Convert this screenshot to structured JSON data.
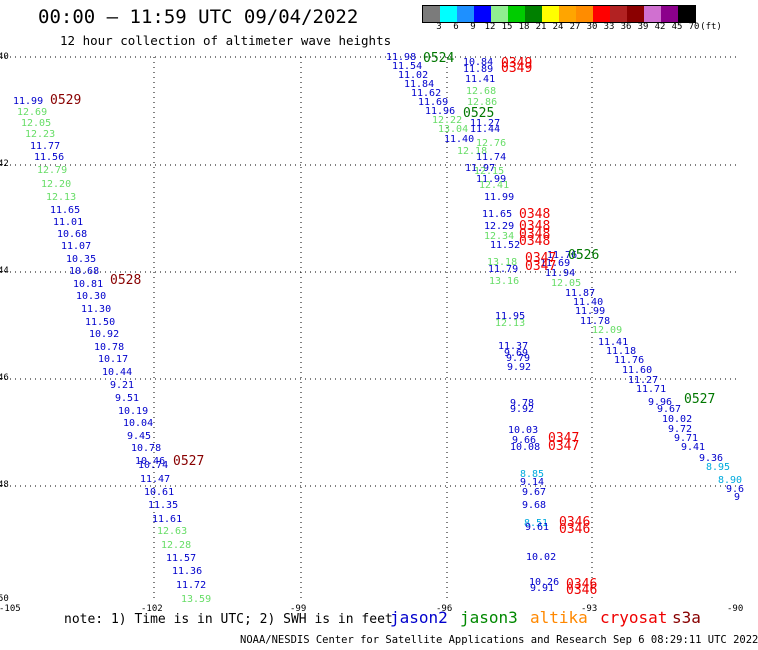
{
  "header": {
    "title": "00:00 – 11:59 UTC 09/04/2022",
    "subtitle": "12 hour collection of altimeter wave heights"
  },
  "colorbar": {
    "unit_label": "(ft)",
    "labels": [
      "3",
      "6",
      "9",
      "12",
      "15",
      "18",
      "21",
      "24",
      "27",
      "30",
      "33",
      "36",
      "39",
      "42",
      "45",
      "70"
    ],
    "colors": [
      "#7b7b7b",
      "#00ffff",
      "#1e90ff",
      "#0000ff",
      "#90ee90",
      "#00cc00",
      "#008000",
      "#ffff00",
      "#ffa500",
      "#ff8c00",
      "#ff0000",
      "#b22222",
      "#8b0000",
      "#d070d0",
      "#8b008b",
      "#000000"
    ]
  },
  "axes": {
    "lat_labels": [
      "40",
      "42",
      "44",
      "46",
      "48",
      "50"
    ],
    "lon_labels": [
      "-105",
      "-102",
      "-99",
      "-96",
      "-93",
      "-90"
    ]
  },
  "observations": [
    {
      "t": "11.98",
      "c": "#0000cc"
    },
    {
      "t": "11.54",
      "c": "#0000cc"
    },
    {
      "t": "11.02",
      "c": "#0000cc"
    },
    {
      "t": "11.84",
      "c": "#0000cc"
    },
    {
      "t": "11.62",
      "c": "#0000cc"
    },
    {
      "t": "11.69",
      "c": "#0000cc"
    },
    {
      "t": "11.96",
      "c": "#0000cc"
    },
    {
      "t": "12.22",
      "c": "#66dd66"
    },
    {
      "t": "13.04",
      "c": "#66dd66"
    },
    {
      "t": "11.40",
      "c": "#0000cc"
    },
    {
      "t": "12.18",
      "c": "#66dd66"
    },
    {
      "t": "11.97",
      "c": "#0000cc"
    },
    {
      "t": "10.84",
      "c": "#0000cc"
    },
    {
      "t": "11.89",
      "c": "#0000cc"
    },
    {
      "t": "11.41",
      "c": "#0000cc"
    },
    {
      "t": "12.68",
      "c": "#66dd66"
    },
    {
      "t": "12.86",
      "c": "#66dd66"
    },
    {
      "t": "11.27",
      "c": "#0000cc"
    },
    {
      "t": "11.44",
      "c": "#0000cc"
    },
    {
      "t": "12.76",
      "c": "#66dd66"
    },
    {
      "t": "11.74",
      "c": "#0000cc"
    },
    {
      "t": "12.15",
      "c": "#66dd66"
    },
    {
      "t": "11.99",
      "c": "#0000cc"
    },
    {
      "t": "12.41",
      "c": "#66dd66"
    },
    {
      "t": "11.99",
      "c": "#0000cc"
    },
    {
      "t": "11.65",
      "c": "#0000cc"
    },
    {
      "t": "12.29",
      "c": "#0000cc"
    },
    {
      "t": "12.34",
      "c": "#66dd66"
    },
    {
      "t": "11.52",
      "c": "#0000cc"
    },
    {
      "t": "13.18",
      "c": "#66dd66"
    },
    {
      "t": "11.79",
      "c": "#0000cc"
    },
    {
      "t": "13.16",
      "c": "#66dd66"
    },
    {
      "t": "11.76",
      "c": "#0000cc"
    },
    {
      "t": "11.69",
      "c": "#0000cc"
    },
    {
      "t": "11.94",
      "c": "#0000cc"
    },
    {
      "t": "12.05",
      "c": "#66dd66"
    },
    {
      "t": "11.87",
      "c": "#0000cc"
    },
    {
      "t": "11.40",
      "c": "#0000cc"
    },
    {
      "t": "11.99",
      "c": "#0000cc"
    },
    {
      "t": "11.78",
      "c": "#0000cc"
    },
    {
      "t": "12.09",
      "c": "#66dd66"
    },
    {
      "t": "11.41",
      "c": "#0000cc"
    },
    {
      "t": "11.18",
      "c": "#0000cc"
    },
    {
      "t": "11.76",
      "c": "#0000cc"
    },
    {
      "t": "11.60",
      "c": "#0000cc"
    },
    {
      "t": "11.27",
      "c": "#0000cc"
    },
    {
      "t": "11.71",
      "c": "#0000cc"
    },
    {
      "t": "9.96",
      "c": "#0000cc"
    },
    {
      "t": "9.67",
      "c": "#0000cc"
    },
    {
      "t": "10.02",
      "c": "#0000cc"
    },
    {
      "t": "9.72",
      "c": "#0000cc"
    },
    {
      "t": "9.71",
      "c": "#0000cc"
    },
    {
      "t": "9.41",
      "c": "#0000cc"
    },
    {
      "t": "9.36",
      "c": "#0000cc"
    },
    {
      "t": "8.95",
      "c": "#00aadd"
    },
    {
      "t": "8.90",
      "c": "#00aadd"
    },
    {
      "t": "9.6",
      "c": "#0000cc"
    },
    {
      "t": "9",
      "c": "#0000cc"
    },
    {
      "t": "11.95",
      "c": "#0000cc"
    },
    {
      "t": "12.13",
      "c": "#66dd66"
    },
    {
      "t": "11.37",
      "c": "#0000cc"
    },
    {
      "t": "9.69",
      "c": "#0000cc"
    },
    {
      "t": "9.79",
      "c": "#0000cc"
    },
    {
      "t": "9.92",
      "c": "#0000cc"
    },
    {
      "t": "9.78",
      "c": "#0000cc"
    },
    {
      "t": "9.92",
      "c": "#0000cc"
    },
    {
      "t": "10.03",
      "c": "#0000cc"
    },
    {
      "t": "9.66",
      "c": "#0000cc"
    },
    {
      "t": "10.08",
      "c": "#0000cc"
    },
    {
      "t": "8.85",
      "c": "#00aadd"
    },
    {
      "t": "9.14",
      "c": "#0000cc"
    },
    {
      "t": "9.67",
      "c": "#0000cc"
    },
    {
      "t": "9.68",
      "c": "#0000cc"
    },
    {
      "t": "8.51",
      "c": "#00aadd"
    },
    {
      "t": "9.61",
      "c": "#0000cc"
    },
    {
      "t": "10.02",
      "c": "#0000cc"
    },
    {
      "t": "10.26",
      "c": "#0000cc"
    },
    {
      "t": "9.91",
      "c": "#0000cc"
    },
    {
      "t": "11.99",
      "c": "#0000cc"
    },
    {
      "t": "12.69",
      "c": "#66dd66"
    },
    {
      "t": "12.05",
      "c": "#66dd66"
    },
    {
      "t": "12.23",
      "c": "#66dd66"
    },
    {
      "t": "11.77",
      "c": "#0000cc"
    },
    {
      "t": "11.56",
      "c": "#0000cc"
    },
    {
      "t": "12.79",
      "c": "#66dd66"
    },
    {
      "t": "12.20",
      "c": "#66dd66"
    },
    {
      "t": "12.13",
      "c": "#66dd66"
    },
    {
      "t": "11.65",
      "c": "#0000cc"
    },
    {
      "t": "11.01",
      "c": "#0000cc"
    },
    {
      "t": "10.68",
      "c": "#0000cc"
    },
    {
      "t": "11.07",
      "c": "#0000cc"
    },
    {
      "t": "10.35",
      "c": "#0000cc"
    },
    {
      "t": "10.68",
      "c": "#0000cc"
    },
    {
      "t": "10.81",
      "c": "#0000cc"
    },
    {
      "t": "10.30",
      "c": "#0000cc"
    },
    {
      "t": "11.30",
      "c": "#0000cc"
    },
    {
      "t": "11.50",
      "c": "#0000cc"
    },
    {
      "t": "10.92",
      "c": "#0000cc"
    },
    {
      "t": "10.78",
      "c": "#0000cc"
    },
    {
      "t": "10.17",
      "c": "#0000cc"
    },
    {
      "t": "10.44",
      "c": "#0000cc"
    },
    {
      "t": "9.21",
      "c": "#0000cc"
    },
    {
      "t": "9.51",
      "c": "#0000cc"
    },
    {
      "t": "10.19",
      "c": "#0000cc"
    },
    {
      "t": "10.04",
      "c": "#0000cc"
    },
    {
      "t": "9.45",
      "c": "#0000cc"
    },
    {
      "t": "10.78",
      "c": "#0000cc"
    },
    {
      "t": "10.46",
      "c": "#0000cc"
    },
    {
      "t": "10.74",
      "c": "#0000cc"
    },
    {
      "t": "11.47",
      "c": "#0000cc"
    },
    {
      "t": "10.61",
      "c": "#0000cc"
    },
    {
      "t": "11.35",
      "c": "#0000cc"
    },
    {
      "t": "11.61",
      "c": "#0000cc"
    },
    {
      "t": "12.63",
      "c": "#66dd66"
    },
    {
      "t": "12.28",
      "c": "#66dd66"
    },
    {
      "t": "11.57",
      "c": "#0000cc"
    },
    {
      "t": "11.36",
      "c": "#0000cc"
    },
    {
      "t": "11.72",
      "c": "#0000cc"
    },
    {
      "t": "13.59",
      "c": "#66dd66"
    }
  ],
  "time_labels": [
    {
      "t": "0524",
      "c": "#007700"
    },
    {
      "t": "0525",
      "c": "#007700"
    },
    {
      "t": "0526",
      "c": "#007700"
    },
    {
      "t": "0527",
      "c": "#007700"
    },
    {
      "t": "0349",
      "c": "#ee0000"
    },
    {
      "t": "0349",
      "c": "#ee0000"
    },
    {
      "t": "0348",
      "c": "#ee0000"
    },
    {
      "t": "0348",
      "c": "#ee0000"
    },
    {
      "t": "0348",
      "c": "#ee0000"
    },
    {
      "t": "0348",
      "c": "#ee0000"
    },
    {
      "t": "0347",
      "c": "#ee0000"
    },
    {
      "t": "0347",
      "c": "#ee0000"
    },
    {
      "t": "0347",
      "c": "#ee0000"
    },
    {
      "t": "0347",
      "c": "#ee0000"
    },
    {
      "t": "0346",
      "c": "#ee0000"
    },
    {
      "t": "0346",
      "c": "#ee0000"
    },
    {
      "t": "0346",
      "c": "#ee0000"
    },
    {
      "t": "0346",
      "c": "#ee0000"
    },
    {
      "t": "0529",
      "c": "#880000"
    },
    {
      "t": "0528",
      "c": "#880000"
    },
    {
      "t": "0527",
      "c": "#880000"
    }
  ],
  "footer": {
    "note": "note: 1) Time is in UTC; 2) SWH is in feet",
    "satellites": [
      {
        "name": "jason2",
        "color": "#0000cc"
      },
      {
        "name": "jason3",
        "color": "#008800"
      },
      {
        "name": "altika",
        "color": "#ff8800"
      },
      {
        "name": "cryosat",
        "color": "#ee0000"
      },
      {
        "name": "s3a",
        "color": "#880000"
      }
    ],
    "credit": "NOAA/NESDIS Center for Satellite Applications and Research   Sep  6 08:29:11 UTC 2022"
  }
}
